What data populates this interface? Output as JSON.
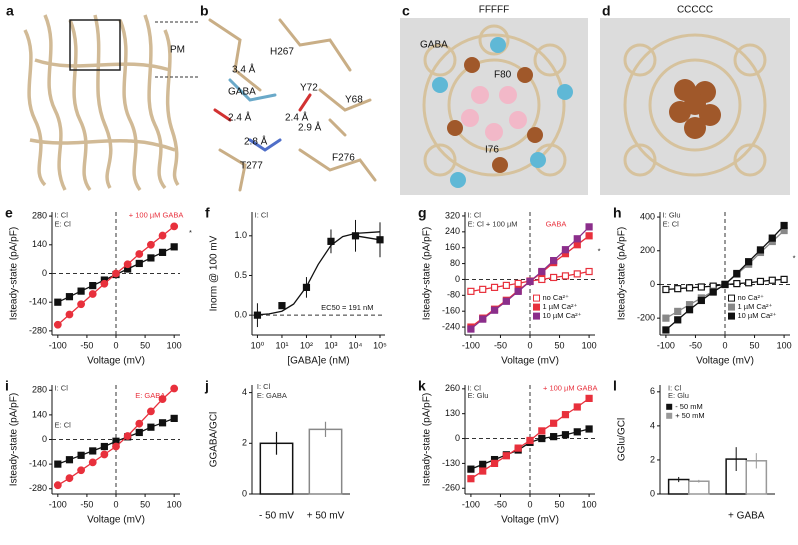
{
  "images": [
    {
      "label": "a",
      "texts": [
        "PM"
      ]
    },
    {
      "label": "b",
      "texts": [
        "H267",
        "GABA",
        "3.4 Å",
        "Y72",
        "Y68",
        "2.4 Å",
        "2.4 Å",
        "2.9 Å",
        "2.8 Å",
        "F276",
        "T277"
      ]
    },
    {
      "label": "c",
      "title": "FFFFF",
      "texts": [
        "GABA",
        "F80",
        "I76"
      ]
    },
    {
      "label": "d",
      "title": "CCCCC",
      "texts": []
    }
  ],
  "chart_data": [
    {
      "type": "line",
      "label": "e",
      "xlabel": "Voltage (mV)",
      "ylabel": "Isteady-state (pA/pF)",
      "x": [
        -100,
        -80,
        -60,
        -40,
        -20,
        0,
        20,
        40,
        60,
        80,
        100
      ],
      "xlim": [
        -110,
        110
      ],
      "xticks": [
        -100,
        -50,
        0,
        50,
        100
      ],
      "ylim": [
        -300,
        300
      ],
      "yticks": [
        -280,
        -140,
        0,
        140,
        280
      ],
      "zero_lines": [
        "x",
        "y"
      ],
      "annotations": [
        {
          "text": "I: Cl",
          "color": "#333333"
        },
        {
          "text": "E: Cl",
          "color": "#333333"
        },
        {
          "text": "+ 100 µM GABA",
          "color": "#e8303c"
        },
        {
          "text": "*",
          "color": "#111111"
        }
      ],
      "series": [
        {
          "name": "E: Cl",
          "color": "#111111",
          "marker": "square",
          "filled": true,
          "values": [
            -140,
            -113,
            -86,
            -59,
            -32,
            -5,
            22,
            49,
            76,
            103,
            130
          ]
        },
        {
          "name": "+ 100 µM GABA",
          "color": "#e8303c",
          "marker": "circle",
          "filled": true,
          "values": [
            -250,
            -200,
            -150,
            -100,
            -50,
            0,
            45,
            95,
            140,
            185,
            230
          ]
        }
      ]
    },
    {
      "type": "line",
      "label": "f",
      "xlabel": "[GABA]e (nM)",
      "ylabel": "Inorm @ 100 mV",
      "log_x": true,
      "xlim": [
        0.6,
        160000
      ],
      "xticks": [
        {
          "value": 1,
          "label": "10⁰"
        },
        {
          "value": 10,
          "label": "10¹"
        },
        {
          "value": 100,
          "label": "10²"
        },
        {
          "value": 1000,
          "label": "10³"
        },
        {
          "value": 10000,
          "label": "10⁴"
        },
        {
          "value": 100000,
          "label": "10⁵"
        }
      ],
      "ylim": [
        -0.25,
        1.3
      ],
      "yticks": [
        {
          "value": 0,
          "label": "0.0"
        },
        {
          "value": 0.5,
          "label": "0.5"
        },
        {
          "value": 1,
          "label": "1.0"
        }
      ],
      "zero_lines": [
        "y"
      ],
      "annotations": [
        {
          "text": "I: Cl",
          "color": "#333333"
        },
        {
          "text": "EC50 = 191 nM",
          "color": "#111111"
        }
      ],
      "x": [
        1,
        3,
        10,
        30,
        100,
        191,
        300,
        1000,
        3000,
        10000,
        100000
      ],
      "series": [
        {
          "name": "fit",
          "color": "#111111",
          "marker": "none",
          "values": [
            0.005,
            0.016,
            0.05,
            0.14,
            0.36,
            0.525,
            0.64,
            0.88,
            0.99,
            1.03,
            1.05
          ]
        },
        {
          "name": "data",
          "color": "#111111",
          "marker": "square",
          "filled": true,
          "values": [
            0,
            null,
            0.12,
            null,
            0.35,
            null,
            null,
            0.93,
            null,
            1.0,
            0.95
          ],
          "errors": [
            0.15,
            null,
            0.03,
            null,
            0.13,
            null,
            null,
            0.15,
            null,
            0.2,
            0.22
          ]
        }
      ]
    },
    {
      "type": "line",
      "label": "g",
      "xlabel": "Voltage (mV)",
      "ylabel": "Isteady-state (pA/pF)",
      "x": [
        -100,
        -80,
        -60,
        -40,
        -20,
        0,
        20,
        40,
        60,
        80,
        100
      ],
      "xlim": [
        -110,
        110
      ],
      "xticks": [
        -100,
        -50,
        0,
        50,
        100
      ],
      "ylim": [
        -280,
        340
      ],
      "yticks": [
        -240,
        -160,
        -80,
        0,
        80,
        160,
        240,
        320
      ],
      "zero_lines": [
        "x",
        "y"
      ],
      "legend": "lower right",
      "annotations": [
        {
          "text": "I: Cl",
          "color": "#333333"
        },
        {
          "text": "E: Cl + 100 µM",
          "color": "#333333"
        },
        {
          "text": "GABA",
          "color": "#e8303c"
        },
        {
          "text": "*",
          "color": "#111111"
        }
      ],
      "series": [
        {
          "name": "no Ca²⁺",
          "color": "#e8303c",
          "marker": "square",
          "filled": false,
          "values": [
            -60,
            -50,
            -40,
            -30,
            -20,
            -8,
            0,
            10,
            18,
            28,
            40
          ]
        },
        {
          "name": "1 µM Ca²⁺",
          "color": "#e8303c",
          "marker": "square",
          "filled": true,
          "values": [
            -240,
            -195,
            -150,
            -105,
            -55,
            -10,
            35,
            85,
            130,
            175,
            220
          ]
        },
        {
          "name": "10 µM Ca²⁺",
          "color": "#8b2e8b",
          "marker": "square",
          "filled": true,
          "values": [
            -250,
            -200,
            -155,
            -110,
            -60,
            -10,
            40,
            95,
            150,
            205,
            265
          ]
        }
      ]
    },
    {
      "type": "line",
      "label": "h",
      "xlabel": "Voltage (mV)",
      "ylabel": "Isteady-state (pA/pF)",
      "x": [
        -100,
        -80,
        -60,
        -40,
        -20,
        0,
        20,
        40,
        60,
        80,
        100
      ],
      "xlim": [
        -110,
        110
      ],
      "xticks": [
        -100,
        -50,
        0,
        50,
        100
      ],
      "ylim": [
        -300,
        430
      ],
      "yticks": [
        -200,
        0,
        200,
        400
      ],
      "zero_lines": [
        "x",
        "y"
      ],
      "legend": "lower right",
      "annotations": [
        {
          "text": "I: Glu",
          "color": "#333333"
        },
        {
          "text": "E: Cl",
          "color": "#333333"
        },
        {
          "text": "*",
          "color": "#111111"
        }
      ],
      "series": [
        {
          "name": "no Ca²⁺",
          "color": "#111111",
          "marker": "square",
          "filled": false,
          "values": [
            -30,
            -25,
            -20,
            -15,
            -10,
            0,
            5,
            10,
            18,
            25,
            30
          ]
        },
        {
          "name": "1 µM Ca²⁺",
          "color": "#888888",
          "marker": "square",
          "filled": true,
          "values": [
            -200,
            -160,
            -120,
            -80,
            -40,
            0,
            60,
            120,
            190,
            255,
            320
          ]
        },
        {
          "name": "10 µM Ca²⁺",
          "color": "#111111",
          "marker": "square",
          "filled": true,
          "values": [
            -270,
            -210,
            -150,
            -95,
            -45,
            0,
            65,
            135,
            205,
            275,
            350
          ]
        }
      ]
    },
    {
      "type": "line",
      "label": "i",
      "xlabel": "Voltage (mV)",
      "ylabel": "Isteady-state (pA/pF)",
      "x": [
        -100,
        -80,
        -60,
        -40,
        -20,
        0,
        20,
        40,
        60,
        80,
        100
      ],
      "xlim": [
        -110,
        110
      ],
      "xticks": [
        -100,
        -50,
        0,
        50,
        100
      ],
      "ylim": [
        -310,
        310
      ],
      "yticks": [
        -280,
        -140,
        0,
        140,
        280
      ],
      "zero_lines": [
        "x",
        "y"
      ],
      "annotations": [
        {
          "text": "I: Cl",
          "color": "#333333"
        },
        {
          "text": "E: GABA",
          "color": "#e8303c"
        },
        {
          "text": "E: Cl",
          "color": "#333333"
        }
      ],
      "series": [
        {
          "name": "E: Cl",
          "color": "#111111",
          "marker": "square",
          "filled": true,
          "values": [
            -140,
            -115,
            -90,
            -65,
            -40,
            -10,
            15,
            40,
            70,
            95,
            120
          ]
        },
        {
          "name": "E: GABA",
          "color": "#e8303c",
          "marker": "circle",
          "filled": true,
          "values": [
            -260,
            -220,
            -175,
            -130,
            -85,
            -40,
            20,
            90,
            160,
            230,
            290
          ]
        }
      ]
    },
    {
      "type": "bar",
      "label": "j",
      "ylabel": "GGABA/GCl",
      "categories": [
        "- 50 mV",
        "+ 50 mV"
      ],
      "values": [
        2.0,
        2.55
      ],
      "errors": [
        0.45,
        0.3
      ],
      "edgecolors": [
        "#111111",
        "#888888"
      ],
      "ylim": [
        0,
        4.3
      ],
      "yticks": [
        0,
        2,
        4
      ],
      "annotations": [
        {
          "text": "I: Cl",
          "color": "#333333"
        },
        {
          "text": "E: GABA",
          "color": "#333333"
        }
      ]
    },
    {
      "type": "line",
      "label": "k",
      "xlabel": "Voltage (mV)",
      "ylabel": "Isteady-state (pA/pF)",
      "x": [
        -100,
        -80,
        -60,
        -40,
        -20,
        0,
        20,
        40,
        60,
        80,
        100
      ],
      "xlim": [
        -110,
        110
      ],
      "xticks": [
        -100,
        -50,
        0,
        50,
        100
      ],
      "ylim": [
        -290,
        280
      ],
      "yticks": [
        -260,
        -130,
        0,
        130,
        260
      ],
      "zero_lines": [
        "x",
        "y"
      ],
      "annotations": [
        {
          "text": "I: Cl",
          "color": "#333333"
        },
        {
          "text": "E: Glu",
          "color": "#333333"
        },
        {
          "text": "+ 100 µM GABA",
          "color": "#e8303c"
        }
      ],
      "series": [
        {
          "name": "E: Glu",
          "color": "#111111",
          "marker": "square",
          "filled": true,
          "values": [
            -160,
            -135,
            -110,
            -85,
            -60,
            -20,
            0,
            10,
            20,
            35,
            50
          ]
        },
        {
          "name": "+ 100 µM GABA",
          "color": "#e8303c",
          "marker": "square",
          "filled": true,
          "values": [
            -210,
            -170,
            -130,
            -90,
            -50,
            -10,
            40,
            80,
            125,
            165,
            210
          ]
        }
      ]
    },
    {
      "type": "grouped_bar",
      "label": "l",
      "ylabel": "GGlu/GCl",
      "legend": "upper left",
      "categories": [
        null,
        "+ GABA"
      ],
      "ylim": [
        0,
        6.4
      ],
      "yticks": [
        0,
        2,
        4,
        6
      ],
      "annotations": [
        {
          "text": "I: Cl",
          "color": "#333333"
        },
        {
          "text": "E: Glu",
          "color": "#333333"
        }
      ],
      "series": [
        {
          "name": "- 50 mM",
          "color": "#111111",
          "values": [
            0.85,
            2.05
          ],
          "errors": [
            0.15,
            0.7
          ]
        },
        {
          "name": "+ 50 mM",
          "color": "#999999",
          "values": [
            0.75,
            1.95
          ],
          "errors": [
            0.08,
            0.45
          ]
        }
      ]
    }
  ]
}
